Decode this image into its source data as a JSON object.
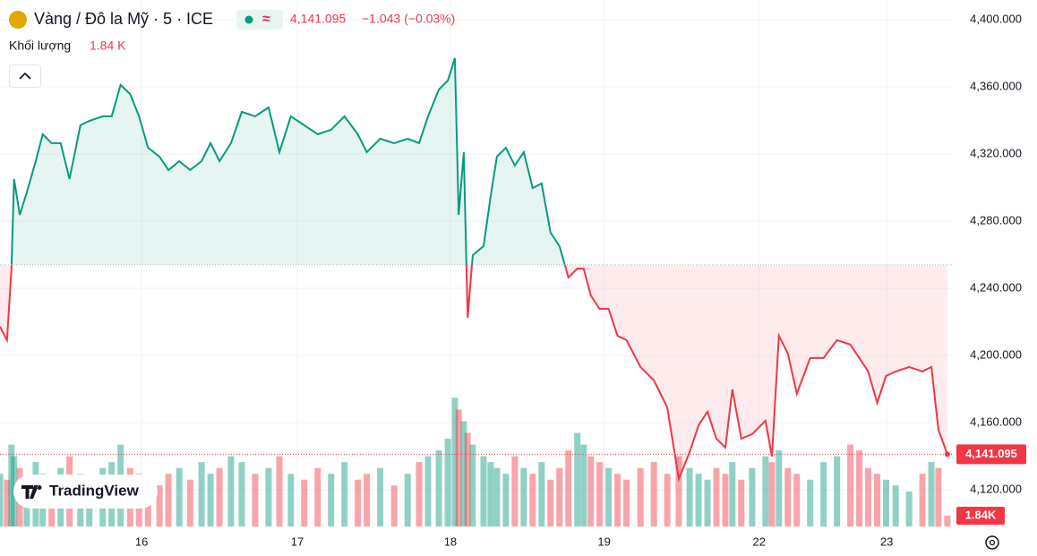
{
  "chart_data": {
    "type": "baseline",
    "title": "Vàng / Đô la Mỹ · 5 · ICE",
    "last_price_label": "4,141.095",
    "change_label": "−1.043 (−0.03%)",
    "volume_title": "Khối lượng",
    "volume_label": "1.84 K",
    "volume_axis_label": "1.84K",
    "brand": "TradingView",
    "baseline": 4254.0,
    "up_color": "#089981",
    "down_color": "#f23645",
    "grid": true,
    "xlim": [
      0,
      149.5
    ],
    "xticks": [
      {
        "value": 22.2,
        "label": "16"
      },
      {
        "value": 46.6,
        "label": "17"
      },
      {
        "value": 70.6,
        "label": "18"
      },
      {
        "value": 94.7,
        "label": "19"
      },
      {
        "value": 119.0,
        "label": "22"
      },
      {
        "value": 139.0,
        "label": "23"
      }
    ],
    "ylim": [
      4098.1,
      4411.7
    ],
    "yticks": [
      {
        "value": 4120,
        "label": "4,120.000"
      },
      {
        "value": 4160,
        "label": "4,160.000"
      },
      {
        "value": 4200,
        "label": "4,200.000"
      },
      {
        "value": 4240,
        "label": "4,240.000"
      },
      {
        "value": 4280,
        "label": "4,280.000"
      },
      {
        "value": 4320,
        "label": "4,320.000"
      },
      {
        "value": 4360,
        "label": "4,360.000"
      },
      {
        "value": 4400,
        "label": "4,400.000"
      }
    ],
    "y2lim": [
      0,
      90
    ],
    "x": [
      0,
      1.1,
      1.8,
      2.2,
      3.1,
      4.2,
      5.6,
      6.7,
      8.1,
      9.5,
      10.9,
      12.6,
      14.0,
      16.1,
      17.5,
      18.9,
      20.4,
      21.8,
      23.2,
      25.0,
      26.4,
      28.1,
      29.8,
      31.6,
      33.0,
      34.4,
      36.2,
      37.9,
      40.0,
      42.1,
      43.8,
      45.6,
      47.7,
      49.8,
      51.9,
      54.0,
      56.1,
      57.5,
      59.6,
      61.8,
      63.9,
      65.7,
      67.1,
      68.8,
      70.2,
      71.3,
      71.9,
      72.7,
      73.3,
      74.1,
      75.8,
      76.9,
      77.9,
      79.3,
      80.7,
      82.1,
      83.5,
      84.9,
      86.3,
      87.7,
      89.1,
      90.5,
      91.5,
      92.6,
      94.0,
      95.4,
      96.8,
      98.2,
      100.4,
      102.5,
      104.6,
      106.4,
      108.1,
      109.5,
      110.9,
      112.3,
      113.7,
      114.8,
      116.2,
      117.9,
      120.0,
      121.0,
      122.1,
      123.5,
      124.9,
      127.0,
      129.1,
      131.2,
      133.3,
      134.7,
      136.1,
      137.5,
      138.9,
      140.4,
      142.5,
      144.6,
      146.0,
      147.1,
      148.5
    ],
    "series": [
      {
        "name": "Vàng / Đô la Mỹ",
        "values": [
          4217.1,
          4209.1,
          4251.7,
          4305.1,
          4283.7,
          4297.1,
          4315.7,
          4331.7,
          4326.4,
          4326.4,
          4305.1,
          4337.1,
          4339.7,
          4342.4,
          4342.4,
          4361.1,
          4355.7,
          4342.4,
          4323.7,
          4318.4,
          4310.4,
          4315.7,
          4310.4,
          4315.7,
          4326.4,
          4315.7,
          4326.4,
          4345.1,
          4342.4,
          4347.7,
          4321.1,
          4342.4,
          4337.1,
          4331.7,
          4334.4,
          4342.4,
          4331.7,
          4321.1,
          4329.1,
          4326.4,
          4329.1,
          4326.4,
          4342.4,
          4358.4,
          4363.7,
          4377.1,
          4283.7,
          4321.1,
          4222.4,
          4259.7,
          4265.1,
          4294.4,
          4318.4,
          4323.7,
          4313.1,
          4321.1,
          4299.7,
          4302.4,
          4273.1,
          4265.1,
          4246.4,
          4251.7,
          4251.7,
          4235.7,
          4227.7,
          4227.7,
          4211.7,
          4209.1,
          4193.1,
          4185.1,
          4169.1,
          4126.4,
          4142.4,
          4158.4,
          4166.4,
          4150.4,
          4145.1,
          4179.7,
          4150.4,
          4153.1,
          4161.1,
          4139.7,
          4211.7,
          4201.1,
          4177.1,
          4198.4,
          4198.4,
          4209.1,
          4206.4,
          4198.4,
          4190.4,
          4171.7,
          4187.7,
          4190.4,
          4193.1,
          4190.4,
          4193.1,
          4155.7,
          4141.095
        ]
      },
      {
        "name": "Khối lượng",
        "axis": "y2",
        "values": [
          9,
          8,
          14,
          12,
          10,
          8,
          11,
          9,
          7,
          10,
          12,
          9,
          8,
          10,
          11,
          14,
          10,
          9,
          8,
          7,
          9,
          10,
          8,
          11,
          9,
          10,
          12,
          11,
          9,
          10,
          12,
          9,
          8,
          10,
          9,
          11,
          8,
          9,
          10,
          7,
          9,
          11,
          12,
          13,
          15,
          22,
          20,
          18,
          16,
          14,
          12,
          11,
          10,
          9,
          12,
          10,
          9,
          11,
          8,
          10,
          13,
          16,
          14,
          12,
          11,
          10,
          9,
          8,
          10,
          11,
          9,
          12,
          10,
          9,
          8,
          10,
          9,
          11,
          8,
          10,
          12,
          11,
          13,
          10,
          9,
          8,
          11,
          12,
          14,
          13,
          10,
          9,
          8,
          7,
          6,
          9,
          11,
          10,
          1.84
        ]
      }
    ]
  }
}
